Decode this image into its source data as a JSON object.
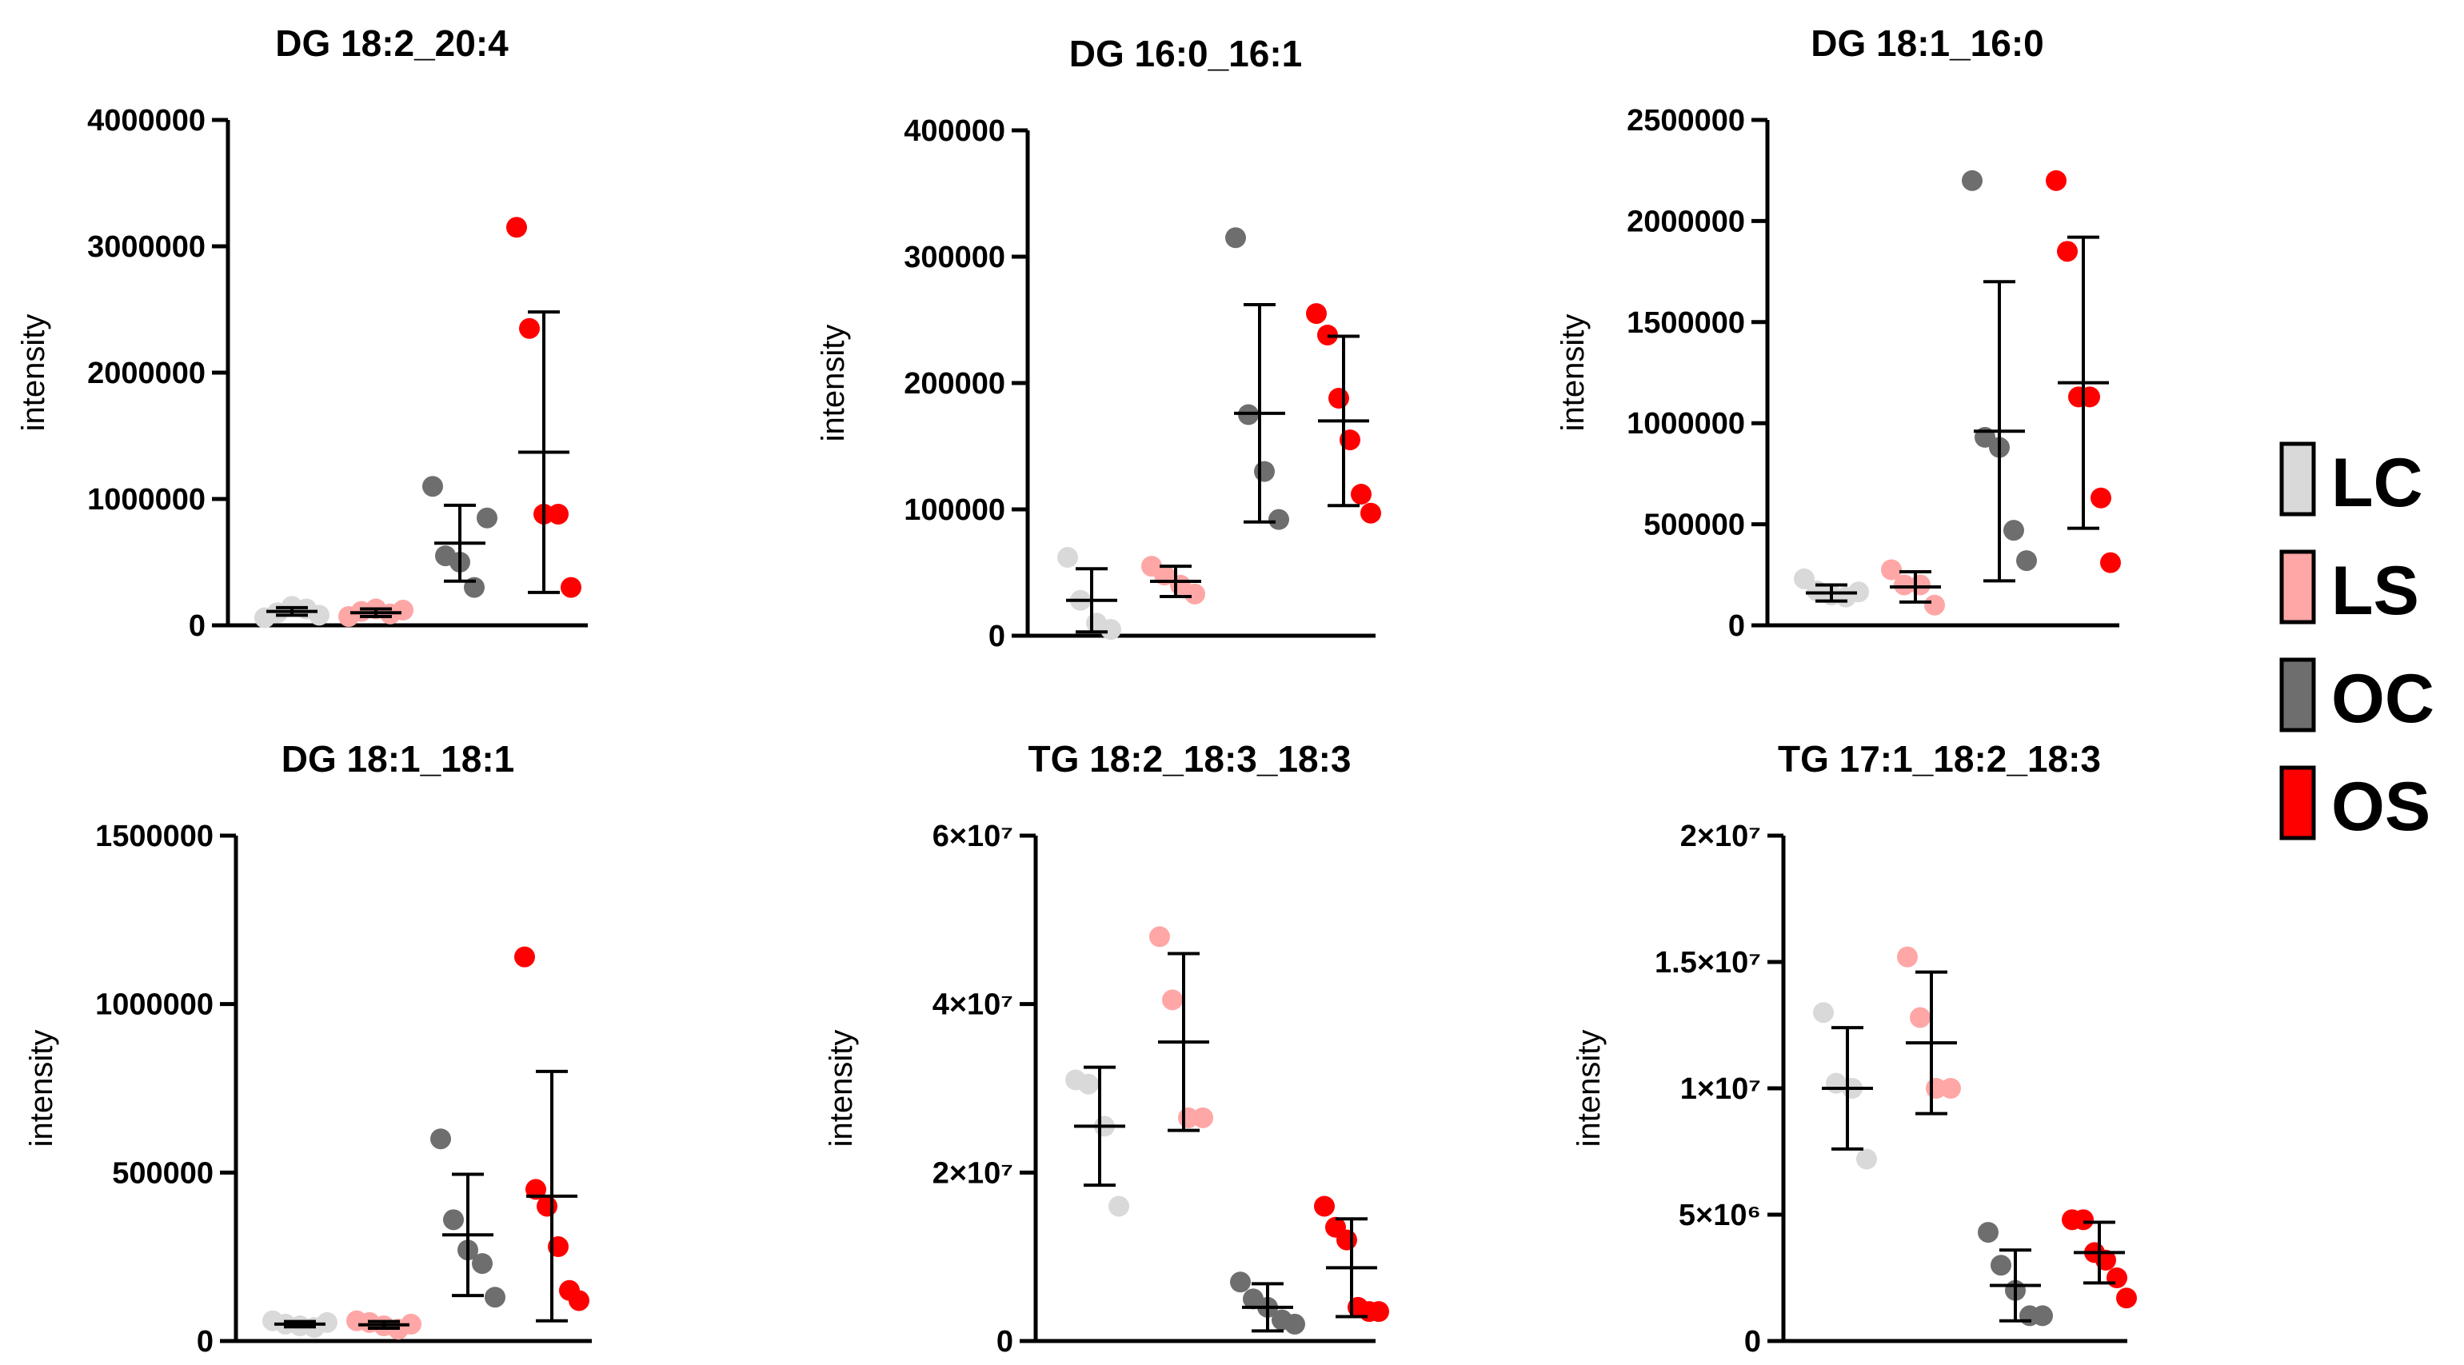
{
  "group_colors": {
    "LC": "#d9d9d9",
    "LS": "#ffa6a6",
    "OC": "#6e6e6e",
    "OS": "#ff0000"
  },
  "legend": [
    {
      "label": "LC",
      "color": "#d9d9d9"
    },
    {
      "label": "LS",
      "color": "#ffa6a6"
    },
    {
      "label": "OC",
      "color": "#6e6e6e"
    },
    {
      "label": "OS",
      "color": "#ff0000"
    }
  ],
  "chart_data": [
    {
      "type": "scatter",
      "title": "DG 18:2_20:4",
      "ylabel": "intensity",
      "ylim": [
        0,
        4000000
      ],
      "yticks": [
        {
          "value": 0,
          "label": "0"
        },
        {
          "value": 1000000,
          "label": "1000000"
        },
        {
          "value": 2000000,
          "label": "2000000"
        },
        {
          "value": 3000000,
          "label": "3000000"
        },
        {
          "value": 4000000,
          "label": "4000000"
        }
      ],
      "groups": [
        {
          "name": "LC",
          "points": [
            60000,
            100000,
            150000,
            130000,
            80000
          ],
          "mean": 110000,
          "sd": 30000
        },
        {
          "name": "LS",
          "points": [
            70000,
            110000,
            130000,
            90000,
            120000
          ],
          "mean": 100000,
          "sd": 30000
        },
        {
          "name": "OC",
          "points": [
            1100000,
            550000,
            500000,
            300000,
            850000
          ],
          "mean": 650000,
          "sd": 300000
        },
        {
          "name": "OS",
          "points": [
            3150000,
            2350000,
            880000,
            880000,
            300000
          ],
          "mean": 1370000,
          "sd": 1110000
        }
      ]
    },
    {
      "type": "scatter",
      "title": "DG 16:0_16:1",
      "ylabel": "intensity",
      "ylim": [
        0,
        400000
      ],
      "yticks": [
        {
          "value": 0,
          "label": "0"
        },
        {
          "value": 100000,
          "label": "100000"
        },
        {
          "value": 200000,
          "label": "200000"
        },
        {
          "value": 300000,
          "label": "300000"
        },
        {
          "value": 400000,
          "label": "400000"
        }
      ],
      "groups": [
        {
          "name": "LC",
          "points": [
            62000,
            28000,
            10000,
            5000
          ],
          "mean": 28000,
          "sd": 25000
        },
        {
          "name": "LS",
          "points": [
            55000,
            48000,
            40000,
            33000
          ],
          "mean": 43000,
          "sd": 12000
        },
        {
          "name": "OC",
          "points": [
            315000,
            175000,
            130000,
            92000
          ],
          "mean": 176000,
          "sd": 86000
        },
        {
          "name": "OS",
          "points": [
            255000,
            238000,
            188000,
            155000,
            112000,
            97000
          ],
          "mean": 170000,
          "sd": 67000
        }
      ]
    },
    {
      "type": "scatter",
      "title": "DG 18:1_16:0",
      "ylabel": "intensity",
      "ylim": [
        0,
        2500000
      ],
      "yticks": [
        {
          "value": 0,
          "label": "0"
        },
        {
          "value": 500000,
          "label": "500000"
        },
        {
          "value": 1000000,
          "label": "1000000"
        },
        {
          "value": 1500000,
          "label": "1500000"
        },
        {
          "value": 2000000,
          "label": "2000000"
        },
        {
          "value": 2500000,
          "label": "2500000"
        }
      ],
      "groups": [
        {
          "name": "LC",
          "points": [
            230000,
            170000,
            150000,
            140000,
            165000
          ],
          "mean": 160000,
          "sd": 40000
        },
        {
          "name": "LS",
          "points": [
            275000,
            200000,
            200000,
            100000
          ],
          "mean": 190000,
          "sd": 75000
        },
        {
          "name": "OC",
          "points": [
            2200000,
            930000,
            880000,
            470000,
            320000
          ],
          "mean": 960000,
          "sd": 740000
        },
        {
          "name": "OS",
          "points": [
            2200000,
            1850000,
            1130000,
            1130000,
            630000,
            310000
          ],
          "mean": 1200000,
          "sd": 720000
        }
      ]
    },
    {
      "type": "scatter",
      "title": "DG 18:1_18:1",
      "ylabel": "intensity",
      "ylim": [
        0,
        1500000
      ],
      "yticks": [
        {
          "value": 0,
          "label": "0"
        },
        {
          "value": 500000,
          "label": "500000"
        },
        {
          "value": 1000000,
          "label": "1000000"
        },
        {
          "value": 1500000,
          "label": "1500000"
        }
      ],
      "groups": [
        {
          "name": "LC",
          "points": [
            60000,
            50000,
            45000,
            40000,
            55000
          ],
          "mean": 50000,
          "sd": 8000
        },
        {
          "name": "LS",
          "points": [
            60000,
            55000,
            45000,
            35000,
            50000
          ],
          "mean": 48000,
          "sd": 10000
        },
        {
          "name": "OC",
          "points": [
            600000,
            360000,
            270000,
            230000,
            130000
          ],
          "mean": 315000,
          "sd": 180000
        },
        {
          "name": "OS",
          "points": [
            1140000,
            450000,
            400000,
            280000,
            150000,
            120000
          ],
          "mean": 430000,
          "sd": 370000
        }
      ]
    },
    {
      "type": "scatter",
      "title": "TG 18:2_18:3_18:3",
      "ylabel": "intensity",
      "ylim": [
        0,
        60000000
      ],
      "yticks": [
        {
          "value": 0,
          "label": "0"
        },
        {
          "value": 20000000,
          "label": "2×10⁷"
        },
        {
          "value": 40000000,
          "label": "4×10⁷"
        },
        {
          "value": 60000000,
          "label": "6×10⁷"
        }
      ],
      "groups": [
        {
          "name": "LC",
          "points": [
            31000000,
            30500000,
            25500000,
            16000000
          ],
          "mean": 25500000,
          "sd": 7000000
        },
        {
          "name": "LS",
          "points": [
            48000000,
            40500000,
            26500000,
            26500000
          ],
          "mean": 35500000,
          "sd": 10500000
        },
        {
          "name": "OC",
          "points": [
            7000000,
            5000000,
            4000000,
            2500000,
            2000000
          ],
          "mean": 4000000,
          "sd": 2800000
        },
        {
          "name": "OS",
          "points": [
            16000000,
            13500000,
            12000000,
            4000000,
            3500000,
            3500000
          ],
          "mean": 8700000,
          "sd": 5800000
        }
      ]
    },
    {
      "type": "scatter",
      "title": "TG 17:1_18:2_18:3",
      "ylabel": "intensity",
      "ylim": [
        0,
        20000000
      ],
      "yticks": [
        {
          "value": 0,
          "label": "0"
        },
        {
          "value": 5000000,
          "label": "5×10⁶"
        },
        {
          "value": 10000000,
          "label": "1×10⁷"
        },
        {
          "value": 15000000,
          "label": "1.5×10⁷"
        },
        {
          "value": 20000000,
          "label": "2×10⁷"
        }
      ],
      "groups": [
        {
          "name": "LC",
          "points": [
            13000000,
            10200000,
            10000000,
            7200000
          ],
          "mean": 10000000,
          "sd": 2400000
        },
        {
          "name": "LS",
          "points": [
            15200000,
            12800000,
            10000000,
            10000000
          ],
          "mean": 11800000,
          "sd": 2800000
        },
        {
          "name": "OC",
          "points": [
            4300000,
            3000000,
            2000000,
            1000000,
            1000000
          ],
          "mean": 2200000,
          "sd": 1400000
        },
        {
          "name": "OS",
          "points": [
            4800000,
            4800000,
            3500000,
            3200000,
            2500000,
            1700000
          ],
          "mean": 3500000,
          "sd": 1200000
        }
      ]
    }
  ]
}
